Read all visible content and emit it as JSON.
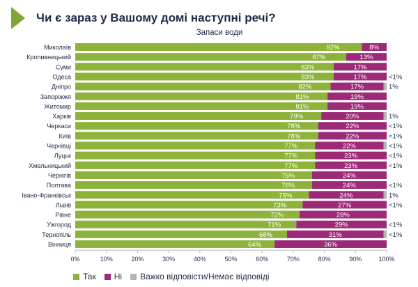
{
  "title": "Чи є зараз у Вашому домі наступні речі?",
  "chart_data": {
    "type": "bar",
    "orientation": "horizontal-stacked",
    "title": "Чи є зараз у Вашому домі наступні речі?",
    "subtitle": "Запаси води",
    "xlim": [
      0,
      100
    ],
    "xticks": [
      "0%",
      "10%",
      "20%",
      "30%",
      "40%",
      "50%",
      "60%",
      "70%",
      "80%",
      "90%",
      "100%"
    ],
    "categories": [
      "Миколаїв",
      "Кропивницький",
      "Суми",
      "Одеса",
      "Дніпро",
      "Запоріжжя",
      "Житомир",
      "Харків",
      "Черкаси",
      "Київ",
      "Чернівці",
      "Луцьк",
      "Хмельницький",
      "Чернігів",
      "Полтава",
      "Івано-Франківськ",
      "Львів",
      "Рівне",
      "Ужгород",
      "Тернопіль",
      "Вінниця"
    ],
    "series": [
      {
        "name": "Так",
        "color": "#8db33a",
        "values": [
          92,
          87,
          83,
          83,
          82,
          81,
          81,
          79,
          78,
          78,
          77,
          77,
          77,
          76,
          76,
          75,
          73,
          72,
          71,
          68,
          64
        ]
      },
      {
        "name": "Ні",
        "color": "#9c2a78",
        "values": [
          8,
          13,
          17,
          17,
          17,
          19,
          19,
          20,
          22,
          22,
          22,
          23,
          23,
          24,
          24,
          24,
          27,
          28,
          29,
          31,
          36
        ]
      },
      {
        "name": "Важко відповісти/Немає відповіді",
        "color": "#b3b3b3",
        "labels": [
          "",
          "",
          "",
          "<1%",
          "1%",
          "",
          "",
          "1%",
          "<1%",
          "<1%",
          "<1%",
          "<1%",
          "<1%",
          "",
          "<1%",
          "1%",
          "<1%",
          "",
          "<1%",
          "<1%",
          ""
        ]
      }
    ],
    "legend": "bottom"
  }
}
